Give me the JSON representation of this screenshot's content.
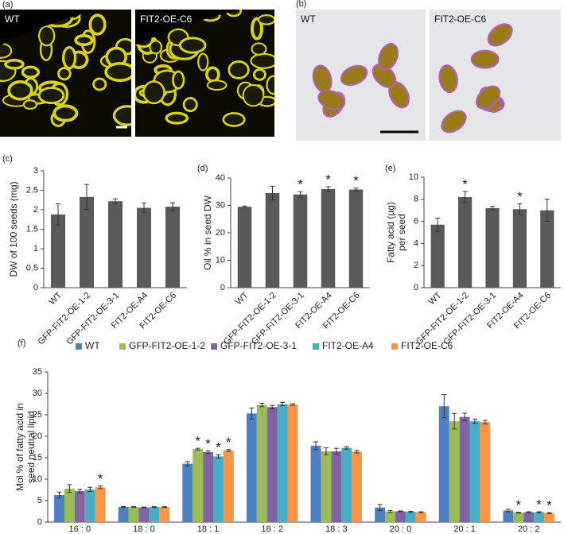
{
  "image_panels": [
    {
      "label": "(a)",
      "images": [
        "WT",
        "FIT2-OE-C6"
      ]
    },
    {
      "label": "(b)",
      "images": [
        "WT",
        "FIT2-OE-C6"
      ]
    }
  ],
  "chart_data": [
    {
      "type": "bar",
      "panel_label": "(c)",
      "ylabel": [
        "DW of 100 seeds (mg)"
      ],
      "color": "#595959",
      "categories": [
        "WT",
        "GFP-FIT2-OE-1-2",
        "GFP-FIT2-OE-3-1",
        "FIT2-OE-A4",
        "FIT2-OE-C6"
      ],
      "values": [
        1.88,
        2.33,
        2.22,
        2.05,
        2.08
      ],
      "errors": [
        0.27,
        0.32,
        0.06,
        0.12,
        0.1
      ],
      "significance": [
        null,
        null,
        null,
        null,
        null
      ],
      "ylim": [
        0,
        3
      ],
      "yticks": [
        0,
        0.5,
        1,
        1.5,
        2,
        2.5,
        3
      ]
    },
    {
      "type": "bar",
      "panel_label": "(d)",
      "ylabel": [
        "Oil % in seed DW"
      ],
      "color": "#595959",
      "categories": [
        "WT",
        "GFP-FIT2-OE-1-2",
        "GFP-FIT2-OE-3-1",
        "FIT2-OE-A4",
        "FIT2-OE-C6"
      ],
      "values": [
        29.5,
        34.5,
        34,
        36,
        35.8
      ],
      "errors": [
        0.3,
        2.5,
        1,
        0.8,
        0.5
      ],
      "significance": [
        null,
        null,
        "*",
        "*",
        "*"
      ],
      "ylim": [
        0,
        40
      ],
      "yticks": [
        0,
        10,
        20,
        30,
        40
      ]
    },
    {
      "type": "bar",
      "panel_label": "(e)",
      "ylabel": [
        "Fatty acid (µg)",
        "per seed"
      ],
      "color": "#595959",
      "categories": [
        "WT",
        "GFP-FIT2-OE-1-2",
        "GFP-FIT2-OE-3-1",
        "FIT2-OE-A4",
        "FIT2-OE-C6"
      ],
      "values": [
        5.7,
        8.2,
        7.2,
        7.1,
        7
      ],
      "errors": [
        0.6,
        0.5,
        0.15,
        0.5,
        1
      ],
      "significance": [
        null,
        "*",
        null,
        "*",
        null
      ],
      "ylim": [
        0,
        10
      ],
      "yticks": [
        0,
        2,
        4,
        6,
        8,
        10
      ]
    },
    {
      "type": "grouped_bar",
      "panel_label": "(f)",
      "ylabel": [
        "Mol % of fatty acid in",
        "seed neutral lipid"
      ],
      "categories": [
        "16 : 0",
        "18 : 0",
        "18 : 1",
        "18 : 2",
        "18 : 3",
        "20 : 0",
        "20 : 1",
        "20 : 2"
      ],
      "series": [
        {
          "name": "WT",
          "color": "#4f7fbf",
          "values": [
            6.3,
            3.5,
            13.6,
            25.3,
            17.8,
            3.4,
            27,
            2.7
          ],
          "errors": [
            0.7,
            0.1,
            0.5,
            1.3,
            0.9,
            0.7,
            2.7,
            0.3
          ],
          "significance": [
            null,
            null,
            null,
            null,
            null,
            null,
            null,
            null
          ]
        },
        {
          "name": "GFP-FIT2-OE-1-2",
          "color": "#9bbb59",
          "values": [
            7.8,
            3.5,
            17,
            27.3,
            16.5,
            2.5,
            23.5,
            2.2
          ],
          "errors": [
            0.9,
            0.1,
            0.2,
            0.4,
            0.8,
            0.2,
            1.8,
            0.1
          ],
          "significance": [
            null,
            null,
            "*",
            null,
            null,
            null,
            null,
            "*"
          ]
        },
        {
          "name": "GFP-FIT2-OE-3-1",
          "color": "#8064a2",
          "values": [
            7.2,
            3.4,
            16.3,
            26.8,
            16.5,
            2.5,
            24.5,
            2.3
          ],
          "errors": [
            0.4,
            0.1,
            0.3,
            0.4,
            0.7,
            0.1,
            0.9,
            0.1
          ],
          "significance": [
            null,
            null,
            "*",
            null,
            null,
            null,
            null,
            null
          ]
        },
        {
          "name": "FIT2-OE-A4",
          "color": "#4bacc6",
          "values": [
            7.6,
            3.5,
            15.3,
            27.5,
            17.3,
            2.4,
            23.5,
            2.3
          ],
          "errors": [
            0.5,
            0.1,
            0.4,
            0.4,
            0.3,
            0.1,
            0.5,
            0.1
          ],
          "significance": [
            null,
            null,
            "*",
            null,
            null,
            null,
            null,
            "*"
          ]
        },
        {
          "name": "FIT2-OE-C6",
          "color": "#f79646",
          "values": [
            8.1,
            3.5,
            16.7,
            27.4,
            16.4,
            2.3,
            23.3,
            2.1
          ],
          "errors": [
            0.3,
            0.1,
            0.2,
            0.2,
            0.3,
            0.1,
            0.4,
            0.1
          ],
          "significance": [
            "*",
            null,
            "*",
            null,
            null,
            null,
            null,
            "*"
          ]
        }
      ],
      "ylim": [
        0,
        35
      ],
      "yticks": [
        0,
        5,
        10,
        15,
        20,
        25,
        30,
        35
      ]
    }
  ]
}
